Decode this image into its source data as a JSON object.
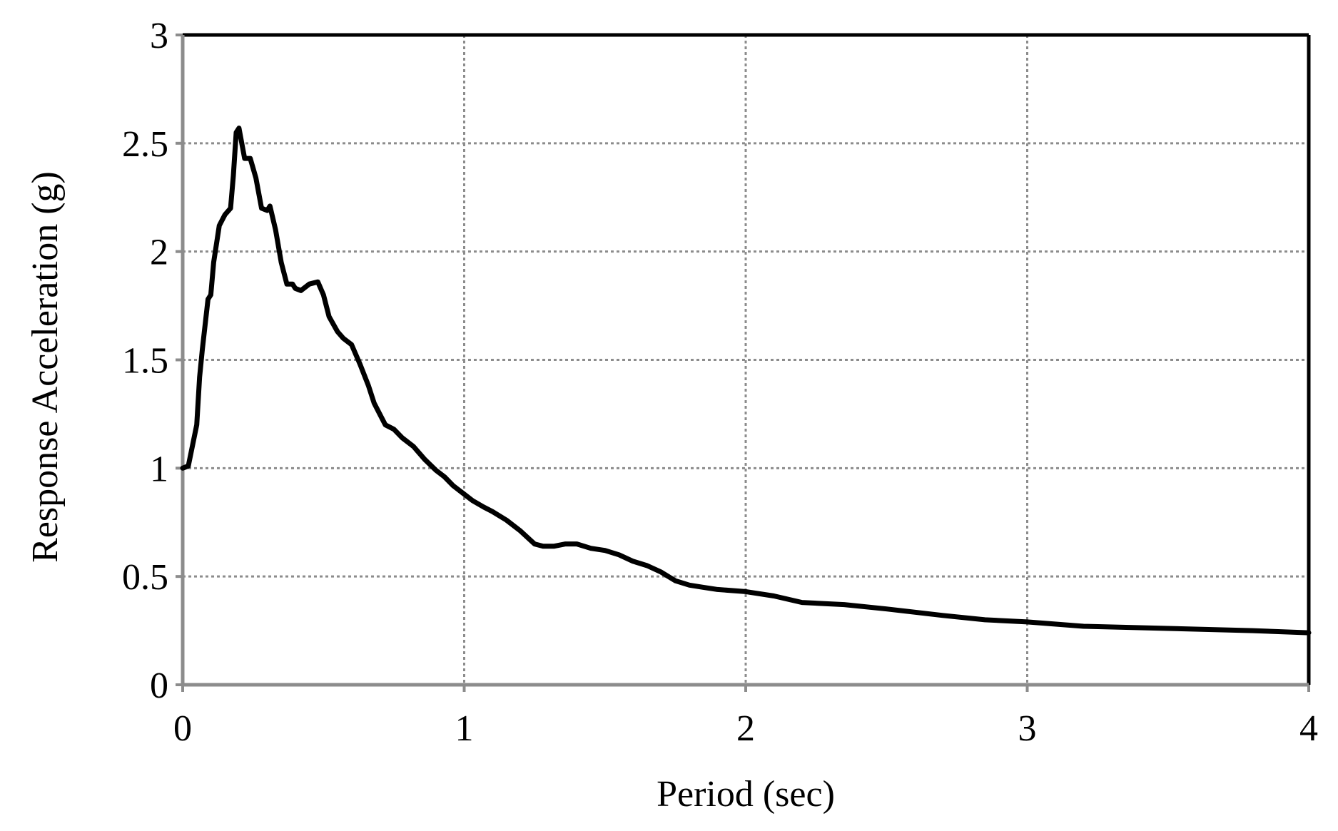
{
  "chart_data": {
    "type": "line",
    "title": "",
    "xlabel": "Period (sec)",
    "ylabel": "Response Acceleration (g)",
    "xlim": [
      0,
      4
    ],
    "ylim": [
      0,
      3
    ],
    "xticks": [
      "0",
      "1",
      "2",
      "3",
      "4"
    ],
    "yticks": [
      "0",
      "0.5",
      "1",
      "1.5",
      "2",
      "2.5",
      "3"
    ],
    "grid": true,
    "line_color": "#000000",
    "grid_color": "#8c8c8c",
    "x": [
      0,
      0.02,
      0.05,
      0.06,
      0.07,
      0.09,
      0.1,
      0.11,
      0.13,
      0.15,
      0.17,
      0.18,
      0.19,
      0.2,
      0.21,
      0.22,
      0.24,
      0.26,
      0.28,
      0.3,
      0.31,
      0.33,
      0.35,
      0.37,
      0.39,
      0.4,
      0.42,
      0.45,
      0.48,
      0.5,
      0.52,
      0.55,
      0.57,
      0.6,
      0.63,
      0.66,
      0.68,
      0.7,
      0.72,
      0.75,
      0.78,
      0.82,
      0.86,
      0.9,
      0.93,
      0.96,
      1.0,
      1.03,
      1.07,
      1.1,
      1.15,
      1.2,
      1.25,
      1.28,
      1.32,
      1.36,
      1.4,
      1.45,
      1.5,
      1.55,
      1.6,
      1.65,
      1.7,
      1.75,
      1.8,
      1.85,
      1.9,
      2.0,
      2.1,
      2.2,
      2.35,
      2.5,
      2.7,
      2.85,
      3.0,
      3.2,
      3.5,
      3.8,
      4.0
    ],
    "y": [
      1.0,
      1.01,
      1.2,
      1.42,
      1.55,
      1.78,
      1.8,
      1.95,
      2.12,
      2.17,
      2.2,
      2.35,
      2.55,
      2.57,
      2.5,
      2.43,
      2.43,
      2.34,
      2.2,
      2.19,
      2.21,
      2.1,
      1.95,
      1.85,
      1.85,
      1.83,
      1.82,
      1.85,
      1.86,
      1.8,
      1.7,
      1.63,
      1.6,
      1.57,
      1.48,
      1.38,
      1.3,
      1.25,
      1.2,
      1.18,
      1.14,
      1.1,
      1.04,
      0.99,
      0.96,
      0.92,
      0.88,
      0.85,
      0.82,
      0.8,
      0.76,
      0.71,
      0.65,
      0.64,
      0.64,
      0.65,
      0.65,
      0.63,
      0.62,
      0.6,
      0.57,
      0.55,
      0.52,
      0.48,
      0.46,
      0.45,
      0.44,
      0.43,
      0.41,
      0.38,
      0.37,
      0.35,
      0.32,
      0.3,
      0.29,
      0.27,
      0.26,
      0.25,
      0.24
    ]
  }
}
